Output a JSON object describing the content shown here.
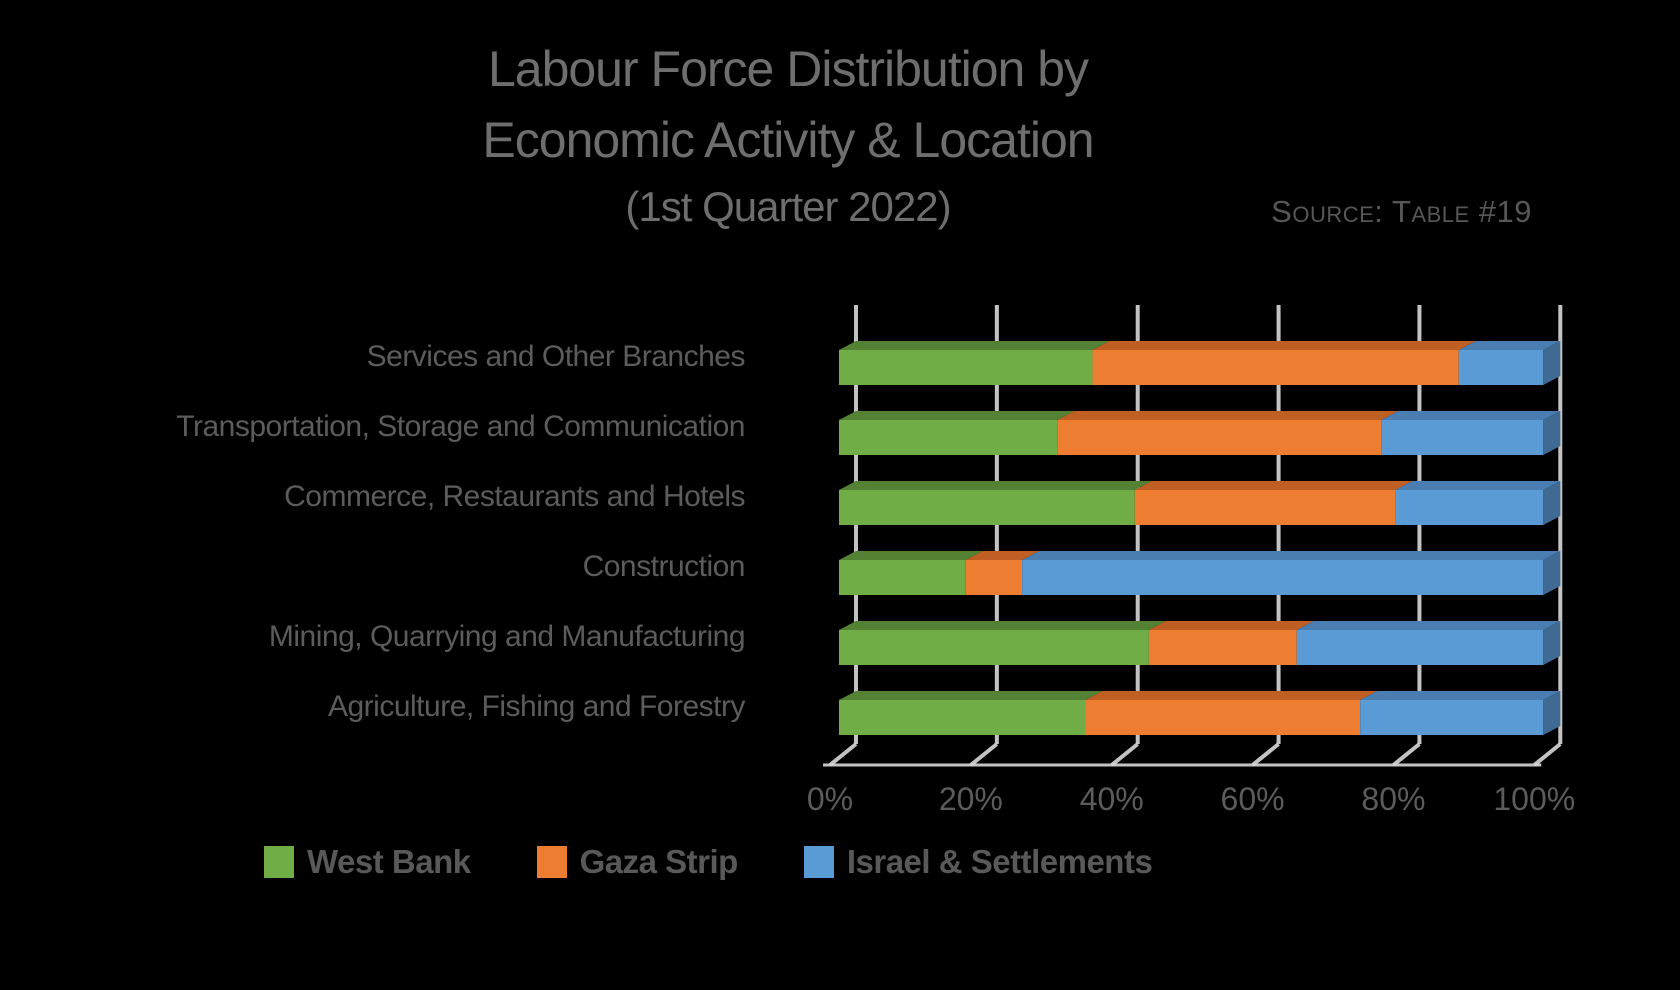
{
  "title": {
    "line1": "Labour Force Distribution by",
    "line2": "Economic Activity & Location",
    "line3": "(1st Quarter 2022)"
  },
  "source": {
    "text": "Source: Table #19"
  },
  "chart_data": {
    "type": "bar",
    "orientation": "horizontal",
    "stacked": true,
    "style": "3d",
    "title": "Labour Force Distribution by Economic Activity & Location (1st Quarter 2022)",
    "unit": "percent",
    "xlim": [
      0,
      100
    ],
    "x_ticks": [
      "0%",
      "20%",
      "40%",
      "60%",
      "80%",
      "100%"
    ],
    "grid": true,
    "legend_position": "bottom",
    "categories": [
      "Services and Other Branches",
      "Transportation, Storage and Communication",
      "Commerce, Restaurants and Hotels",
      "Construction",
      "Mining, Quarrying and Manufacturing",
      "Agriculture, Fishing and Forestry"
    ],
    "series": [
      {
        "name": "West Bank",
        "color": "#70AD47",
        "color_top": "#548235",
        "color_side": "#4A732F",
        "values": [
          36,
          31,
          42,
          18,
          44,
          35
        ]
      },
      {
        "name": "Gaza Strip",
        "color": "#ED7D31",
        "color_top": "#C05F24",
        "color_side": "#A8531F",
        "values": [
          52,
          46,
          37,
          8,
          21,
          39
        ]
      },
      {
        "name": "Israel & Settlements",
        "color": "#5B9BD5",
        "color_top": "#4A7EB2",
        "color_side": "#3F6A94",
        "values": [
          12,
          23,
          21,
          74,
          35,
          26
        ]
      }
    ]
  },
  "colors": {
    "background": "#000000",
    "gridline": "#D9D9D9",
    "title_text": "#6E6E6E",
    "axis_text": "#5C5C5C",
    "legend_text": "#595959"
  }
}
